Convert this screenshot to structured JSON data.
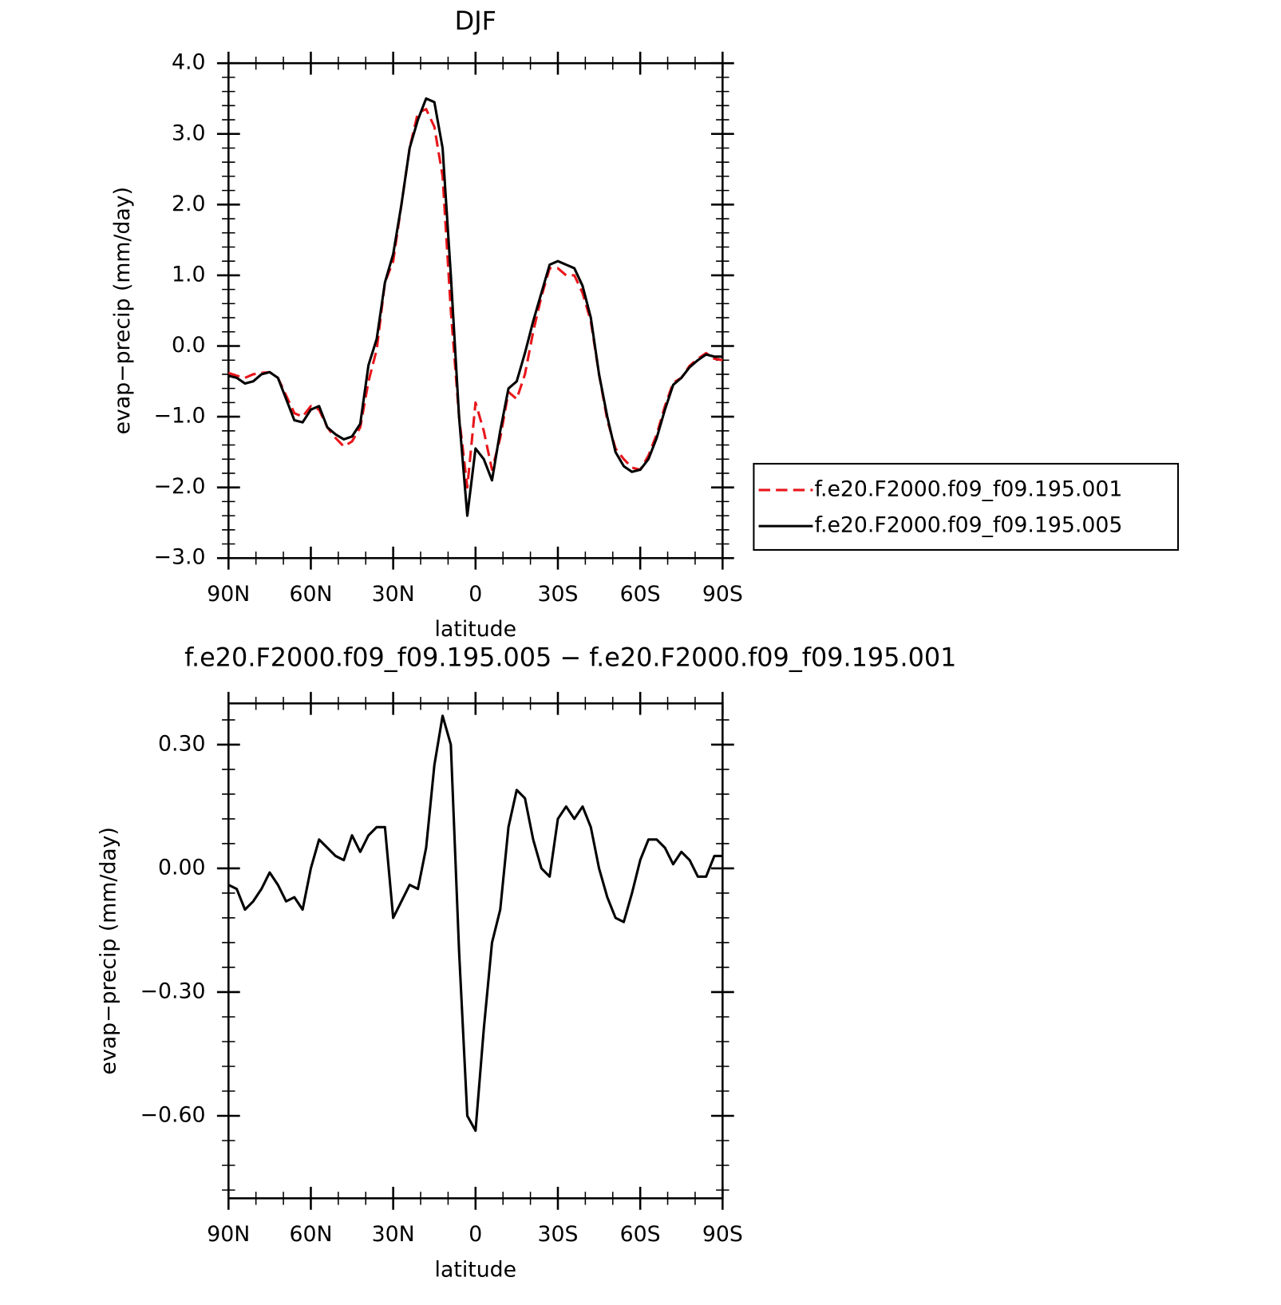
{
  "chart_data": [
    {
      "type": "line",
      "title": "DJF",
      "x_label": "latitude",
      "y_label": "evap−precip (mm/day)",
      "x": [
        90,
        87,
        84,
        81,
        78,
        75,
        72,
        69,
        66,
        63,
        60,
        57,
        54,
        51,
        48,
        45,
        42,
        39,
        36,
        33,
        30,
        27,
        24,
        21,
        18,
        15,
        12,
        9,
        6,
        3,
        0,
        -3,
        -6,
        -9,
        -12,
        -15,
        -18,
        -21,
        -24,
        -27,
        -30,
        -33,
        -36,
        -39,
        -42,
        -45,
        -48,
        -51,
        -54,
        -57,
        -60,
        -63,
        -66,
        -69,
        -72,
        -75,
        -78,
        -81,
        -84,
        -87,
        -90
      ],
      "series": [
        {
          "name": "f.e20.F2000.f09_f09.195.001",
          "color": "#e8161b",
          "line_style": "dashed",
          "values": [
            -0.38,
            -0.42,
            -0.45,
            -0.4,
            -0.38,
            -0.37,
            -0.45,
            -0.7,
            -0.95,
            -1.0,
            -0.85,
            -0.9,
            -1.15,
            -1.3,
            -1.42,
            -1.35,
            -1.15,
            -0.5,
            -0.05,
            0.9,
            1.2,
            2.0,
            2.8,
            3.3,
            3.35,
            3.1,
            2.4,
            0.5,
            -1.0,
            -2.0,
            -0.8,
            -1.2,
            -1.75,
            -1.3,
            -0.65,
            -0.75,
            -0.4,
            0.2,
            0.7,
            1.1,
            1.1,
            1.0,
            1.0,
            0.75,
            0.35,
            -0.4,
            -1.05,
            -1.45,
            -1.6,
            -1.72,
            -1.75,
            -1.55,
            -1.25,
            -0.85,
            -0.52,
            -0.45,
            -0.28,
            -0.18,
            -0.1,
            -0.18,
            -0.2
          ]
        },
        {
          "name": "f.e20.F2000.f09_f09.195.005",
          "color": "#000000",
          "line_style": "solid",
          "values": [
            -0.42,
            -0.45,
            -0.53,
            -0.5,
            -0.4,
            -0.37,
            -0.45,
            -0.75,
            -1.05,
            -1.08,
            -0.9,
            -0.85,
            -1.15,
            -1.25,
            -1.32,
            -1.28,
            -1.1,
            -0.27,
            0.1,
            0.9,
            1.3,
            2.0,
            2.8,
            3.2,
            3.5,
            3.45,
            2.8,
            1.0,
            -1.0,
            -2.4,
            -1.45,
            -1.6,
            -1.9,
            -1.2,
            -0.6,
            -0.5,
            -0.1,
            0.35,
            0.75,
            1.15,
            1.2,
            1.15,
            1.1,
            0.85,
            0.4,
            -0.4,
            -1.0,
            -1.5,
            -1.7,
            -1.78,
            -1.75,
            -1.6,
            -1.3,
            -0.9,
            -0.55,
            -0.45,
            -0.3,
            -0.2,
            -0.12,
            -0.15,
            -0.15
          ]
        }
      ],
      "xlim": [
        90,
        -90
      ],
      "xticks": [
        {
          "value": 90,
          "label": "90N"
        },
        {
          "value": 60,
          "label": "60N"
        },
        {
          "value": 30,
          "label": "30N"
        },
        0,
        {
          "value": -30,
          "label": "30S"
        },
        {
          "value": -60,
          "label": "60S"
        },
        {
          "value": -90,
          "label": "90S"
        }
      ],
      "ylim": [
        -3,
        4
      ],
      "yticks": [
        {
          "value": -3,
          "label": "−3.0"
        },
        {
          "value": -2,
          "label": "−2.0"
        },
        {
          "value": -1,
          "label": "−1.0"
        },
        {
          "value": 0,
          "label": "0.0"
        },
        {
          "value": 1,
          "label": "1.0"
        },
        {
          "value": 2,
          "label": "2.0"
        },
        {
          "value": 3,
          "label": "3.0"
        },
        {
          "value": 4,
          "label": "4.0"
        }
      ],
      "legend": "right"
    },
    {
      "type": "line",
      "title": "f.e20.F2000.f09_f09.195.005 − f.e20.F2000.f09_f09.195.001",
      "x_label": "latitude",
      "y_label": "evap−precip (mm/day)",
      "x": [
        90,
        87,
        84,
        81,
        78,
        75,
        72,
        69,
        66,
        63,
        60,
        57,
        54,
        51,
        48,
        45,
        42,
        39,
        36,
        33,
        30,
        27,
        24,
        21,
        18,
        15,
        12,
        9,
        6,
        3,
        0,
        -3,
        -6,
        -9,
        -12,
        -15,
        -18,
        -21,
        -24,
        -27,
        -30,
        -33,
        -36,
        -39,
        -42,
        -45,
        -48,
        -51,
        -54,
        -57,
        -60,
        -63,
        -66,
        -69,
        -72,
        -75,
        -78,
        -81,
        -84,
        -87,
        -90
      ],
      "series": [
        {
          "color": "#000000",
          "line_style": "solid",
          "values": [
            -0.04,
            -0.05,
            -0.1,
            -0.08,
            -0.05,
            -0.01,
            -0.04,
            -0.08,
            -0.07,
            -0.1,
            0.0,
            0.07,
            0.05,
            0.03,
            0.02,
            0.08,
            0.04,
            0.08,
            0.1,
            0.1,
            -0.12,
            -0.08,
            -0.04,
            -0.05,
            0.05,
            0.25,
            0.37,
            0.3,
            -0.2,
            -0.6,
            -0.636,
            -0.39,
            -0.18,
            -0.1,
            0.1,
            0.19,
            0.17,
            0.07,
            0.0,
            -0.02,
            0.12,
            0.15,
            0.12,
            0.15,
            0.1,
            0.0,
            -0.07,
            -0.12,
            -0.13,
            -0.06,
            0.02,
            0.07,
            0.07,
            0.05,
            0.01,
            0.04,
            0.02,
            -0.02,
            -0.02,
            0.03,
            0.03
          ]
        }
      ],
      "xlim": [
        90,
        -90
      ],
      "xticks": [
        {
          "value": 90,
          "label": "90N"
        },
        {
          "value": 60,
          "label": "60N"
        },
        {
          "value": 30,
          "label": "30N"
        },
        0,
        {
          "value": -30,
          "label": "30S"
        },
        {
          "value": -60,
          "label": "60S"
        },
        {
          "value": -90,
          "label": "90S"
        }
      ],
      "ylim": [
        -0.8,
        0.4
      ],
      "yticks": [
        {
          "value": -0.6,
          "label": "−0.60"
        },
        {
          "value": -0.3,
          "label": "−0.30"
        },
        {
          "value": 0,
          "label": "0.00"
        },
        {
          "value": 0.3,
          "label": "0.30"
        }
      ]
    }
  ]
}
